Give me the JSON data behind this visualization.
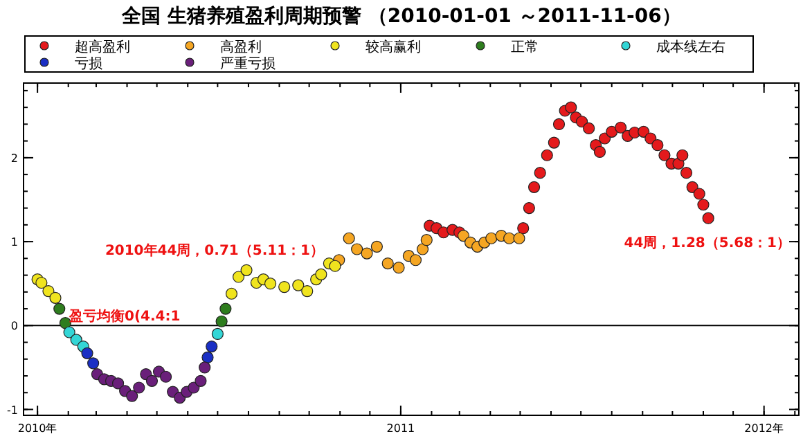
{
  "chart_data": {
    "type": "scatter",
    "title": "全国 生猪养殖盈利周期预警 （2010-01-01 ～2011-11-06）",
    "xlim": [
      "2009-12-18",
      "2012-02-05"
    ],
    "xticks": [
      {
        "value": "2010-01-01",
        "label": "2010年"
      },
      {
        "value": "2011-01-01",
        "label": "2011"
      },
      {
        "value": "2012-01-01",
        "label": "2012年"
      }
    ],
    "ylim": [
      -1.07,
      2.89
    ],
    "yticks": [
      -1,
      0,
      1,
      2
    ],
    "grid": false,
    "legend": "top",
    "marker": "circle",
    "ref_lines": [
      {
        "axis": "y",
        "value": 0,
        "color": "#000000"
      }
    ],
    "annotations": [
      {
        "text": "2010年44周，0.71（5.11：1）",
        "x": "2010-10-27",
        "y": 0.71
      },
      "盈亏均衡0(4.4:1",
      {
        "text": "44周，1.28（5.68：1）",
        "x": "2011-11-06",
        "y": 1.28
      }
    ],
    "series": [
      {
        "name": "超高盈利",
        "color": "#e41a1c",
        "x": [
          "2011-01-30",
          "2011-02-06",
          "2011-02-13",
          "2011-02-22",
          "2011-03-01",
          "2011-05-04",
          "2011-05-10",
          "2011-05-15",
          "2011-05-21",
          "2011-05-28",
          "2011-06-04",
          "2011-06-09",
          "2011-06-15",
          "2011-06-21",
          "2011-06-26",
          "2011-07-02",
          "2011-07-09",
          "2011-07-16",
          "2011-07-20",
          "2011-07-25",
          "2011-08-01",
          "2011-08-10",
          "2011-08-17",
          "2011-08-24",
          "2011-09-02",
          "2011-09-09",
          "2011-09-16",
          "2011-09-23",
          "2011-09-30",
          "2011-10-07",
          "2011-10-11",
          "2011-10-15",
          "2011-10-21",
          "2011-10-28",
          "2011-11-01",
          "2011-11-06"
        ],
        "values": [
          1.19,
          1.16,
          1.11,
          1.14,
          1.11,
          1.16,
          1.4,
          1.65,
          1.82,
          2.03,
          2.18,
          2.4,
          2.56,
          2.6,
          2.48,
          2.43,
          2.35,
          2.15,
          2.07,
          2.23,
          2.31,
          2.36,
          2.26,
          2.3,
          2.31,
          2.23,
          2.15,
          2.03,
          1.93,
          1.93,
          2.03,
          1.82,
          1.65,
          1.57,
          1.44,
          1.28
        ]
      },
      {
        "name": "高盈利",
        "color": "#f5a623",
        "x": [
          "2010-10-31",
          "2010-11-10",
          "2010-11-18",
          "2010-11-28",
          "2010-12-08",
          "2010-12-19",
          "2010-12-30",
          "2011-01-09",
          "2011-01-16",
          "2011-01-23",
          "2011-01-27",
          "2011-03-05",
          "2011-03-12",
          "2011-03-19",
          "2011-03-26",
          "2011-04-02",
          "2011-04-12",
          "2011-04-20",
          "2011-04-30"
        ],
        "values": [
          0.78,
          1.04,
          0.91,
          0.86,
          0.94,
          0.74,
          0.69,
          0.83,
          0.78,
          0.91,
          1.02,
          1.07,
          0.99,
          0.94,
          0.99,
          1.04,
          1.07,
          1.04,
          1.04
        ]
      },
      {
        "name": "较高赢利",
        "color": "#f0e41e",
        "x": [
          "2010-01-01",
          "2010-01-05",
          "2010-01-12",
          "2010-01-19",
          "2010-07-15",
          "2010-07-22",
          "2010-07-30",
          "2010-08-09",
          "2010-08-16",
          "2010-08-23",
          "2010-09-06",
          "2010-09-20",
          "2010-09-29",
          "2010-10-08",
          "2010-10-13",
          "2010-10-21",
          "2010-10-27"
        ],
        "values": [
          0.55,
          0.51,
          0.41,
          0.33,
          0.38,
          0.58,
          0.66,
          0.51,
          0.55,
          0.5,
          0.46,
          0.48,
          0.41,
          0.55,
          0.61,
          0.74,
          0.71
        ]
      },
      {
        "name": "正常",
        "color": "#2e7d1e",
        "x": [
          "2010-01-23",
          "2010-01-29",
          "2010-07-05",
          "2010-07-09"
        ],
        "values": [
          0.2,
          0.03,
          0.05,
          0.2
        ]
      },
      {
        "name": "成本线左右",
        "color": "#33d6d6",
        "x": [
          "2010-02-02",
          "2010-02-09",
          "2010-02-16",
          "2010-07-01"
        ],
        "values": [
          -0.08,
          -0.17,
          -0.25,
          -0.1
        ]
      },
      {
        "name": "亏损",
        "color": "#1a2fc4",
        "x": [
          "2010-02-20",
          "2010-02-26",
          "2010-06-21",
          "2010-06-25"
        ],
        "values": [
          -0.33,
          -0.45,
          -0.38,
          -0.25
        ]
      },
      {
        "name": "严重亏损",
        "color": "#6a1f7a",
        "x": [
          "2010-03-02",
          "2010-03-09",
          "2010-03-16",
          "2010-03-23",
          "2010-03-30",
          "2010-04-06",
          "2010-04-13",
          "2010-04-20",
          "2010-04-26",
          "2010-05-03",
          "2010-05-10",
          "2010-05-17",
          "2010-05-24",
          "2010-05-31",
          "2010-06-07",
          "2010-06-14",
          "2010-06-18"
        ],
        "values": [
          -0.58,
          -0.64,
          -0.66,
          -0.69,
          -0.78,
          -0.84,
          -0.74,
          -0.58,
          -0.66,
          -0.55,
          -0.61,
          -0.79,
          -0.86,
          -0.79,
          -0.74,
          -0.66,
          -0.5
        ]
      }
    ]
  }
}
